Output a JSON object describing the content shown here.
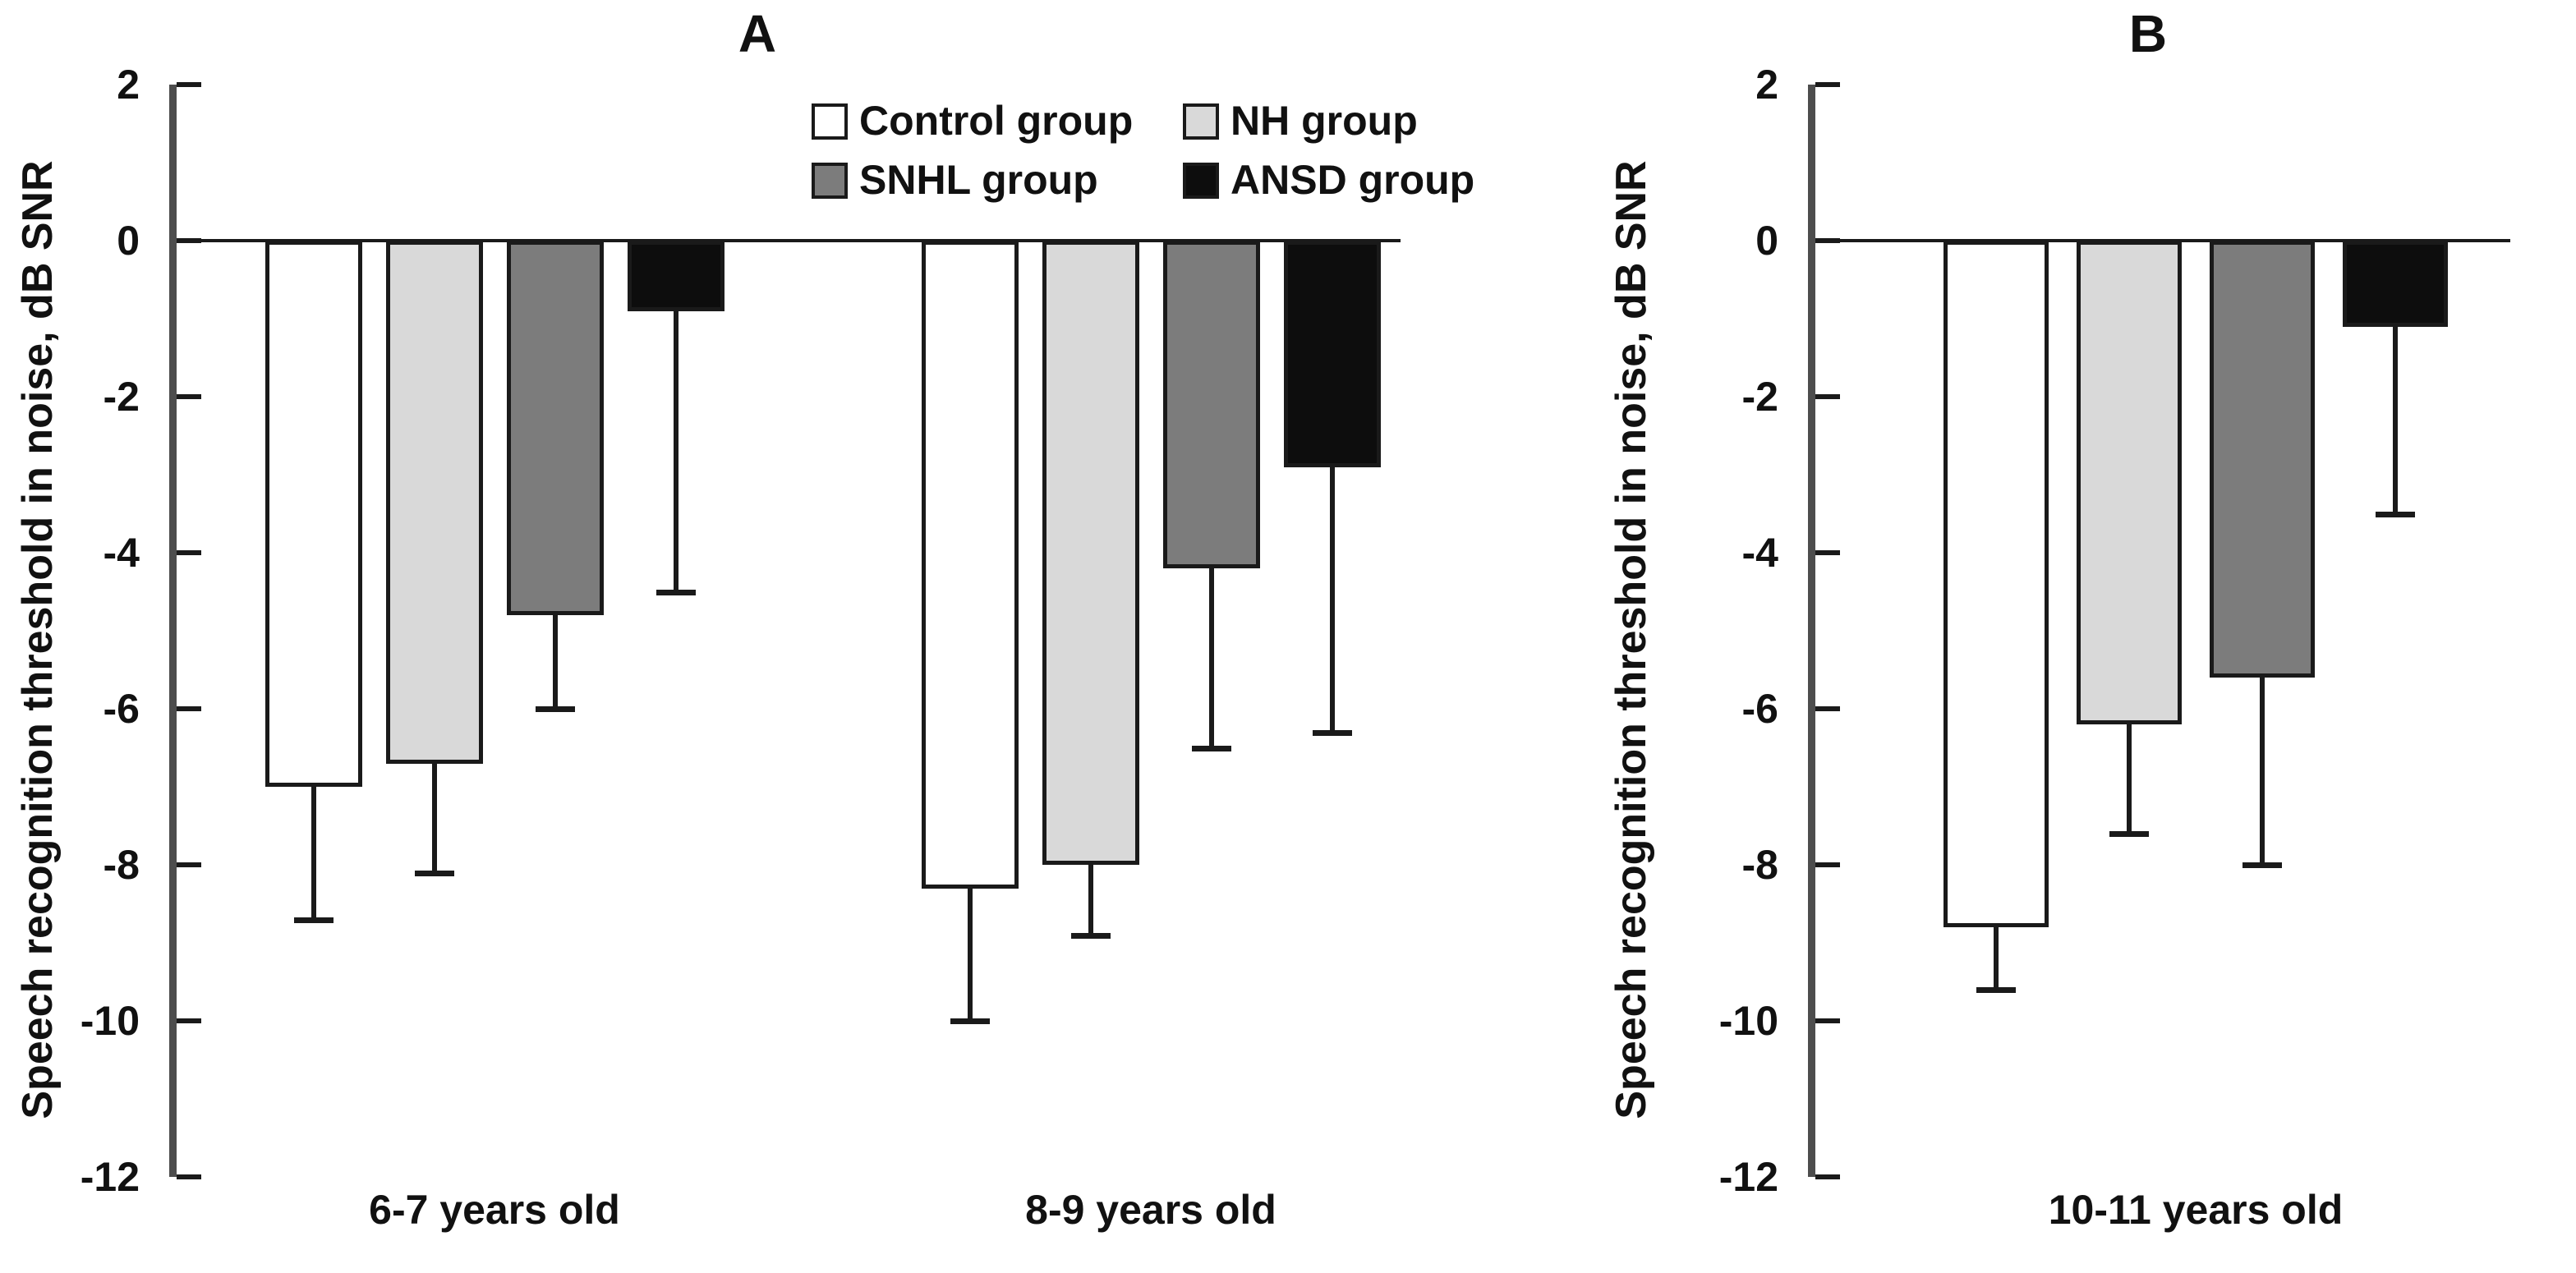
{
  "chart_data": [
    {
      "type": "bar",
      "panel": "A",
      "title": "A",
      "categories": [
        "6-7 years old",
        "8-9 years old"
      ],
      "series": [
        {
          "name": "Control group",
          "color": "#ffffff",
          "values": [
            -7.0,
            -8.3
          ],
          "errors": [
            1.7,
            1.7
          ]
        },
        {
          "name": "NH group",
          "color": "#d9d9d9",
          "values": [
            -6.7,
            -8.0
          ],
          "errors": [
            1.4,
            0.9
          ]
        },
        {
          "name": "SNHL group",
          "color": "#7c7c7c",
          "values": [
            -4.8,
            -4.2
          ],
          "errors": [
            1.2,
            2.3
          ]
        },
        {
          "name": "ANSD group",
          "color": "#0d0d0d",
          "values": [
            -0.9,
            -2.9
          ],
          "errors": [
            3.6,
            3.4
          ]
        }
      ],
      "xlabel": "",
      "ylabel": "Speech recognition threshold in noise, dB SNR",
      "ylim": [
        -12,
        2
      ],
      "yticks": [
        2,
        0,
        -2,
        -4,
        -6,
        -8,
        -10,
        -12
      ],
      "error_direction": "down",
      "grid": false,
      "legend_position": "top-center"
    },
    {
      "type": "bar",
      "panel": "B",
      "title": "B",
      "categories": [
        "10-11 years old"
      ],
      "series": [
        {
          "name": "Control group",
          "color": "#ffffff",
          "values": [
            -8.8
          ],
          "errors": [
            0.8
          ]
        },
        {
          "name": "NH group",
          "color": "#d9d9d9",
          "values": [
            -6.2
          ],
          "errors": [
            1.4
          ]
        },
        {
          "name": "SNHL group",
          "color": "#7c7c7c",
          "values": [
            -5.6
          ],
          "errors": [
            2.4
          ]
        },
        {
          "name": "ANSD group",
          "color": "#0d0d0d",
          "values": [
            -1.1
          ],
          "errors": [
            2.4
          ]
        }
      ],
      "xlabel": "",
      "ylabel": "Speech recognition threshold in noise, dB SNR",
      "ylim": [
        -12,
        2
      ],
      "yticks": [
        2,
        0,
        -2,
        -4,
        -6,
        -8,
        -10,
        -12
      ],
      "error_direction": "down",
      "grid": false,
      "legend_position": "none"
    }
  ],
  "colors": {
    "bar_border": "#1a1a1a",
    "axis_line": "#4d4d4d",
    "tick_mark": "#1a1a1a",
    "zero_line": "#1a1a1a",
    "text": "#111111"
  }
}
